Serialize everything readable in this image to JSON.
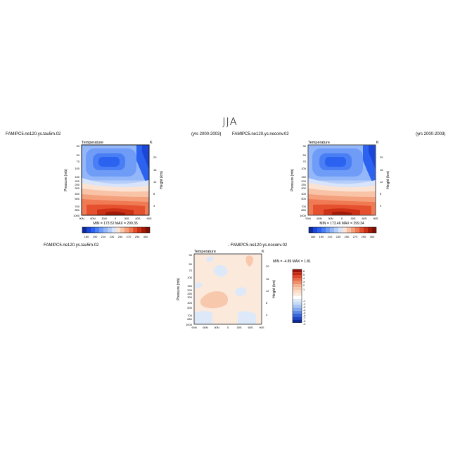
{
  "figure": {
    "title": "JJA"
  },
  "panels": [
    {
      "id": "top-left",
      "case_label": "FAMIPC5.ne120.ys.tau5m.02",
      "years": "(yrs 2000-2003)",
      "variable": "Temperature",
      "units": "K",
      "stats": "MIN = 173.52   MAX = 299.35"
    },
    {
      "id": "top-right",
      "case_label": "FAMIPC5.ne120.ys.noconv.02",
      "years": "(yrs 2000-2003)",
      "variable": "Temperature",
      "units": "K",
      "stats": "MIN = 173.46   MAX = 299.34"
    },
    {
      "id": "bottom-diff",
      "case_label_left": "FAMIPC5.ne120.ys.tau5m.02",
      "case_label_right": "- FAMIPC5.ne120.ys.noconv.02",
      "variable": "Temperature",
      "units": "K",
      "stats": "MIN =  -4.89   MAX =   1.81"
    }
  ],
  "chart_data": [
    {
      "type": "heatmap",
      "title": "Temperature",
      "xlabel": "",
      "ylabel": "Pressure (mb)",
      "ylabel_right": "Height (km)",
      "x_ticks": [
        "90N",
        "60N",
        "30N",
        "0",
        "30S",
        "60S",
        "90S"
      ],
      "y_ticks_pressure": [
        "30",
        "50",
        "70",
        "100",
        "150",
        "200",
        "250",
        "300",
        "400",
        "500",
        "700",
        "850",
        "900",
        "1000"
      ],
      "y_ticks_height": [
        "20",
        "16",
        "12",
        "8",
        "4"
      ],
      "colorbar_labels": [
        "180",
        "190",
        "210",
        "230",
        "250",
        "270",
        "290",
        "300"
      ],
      "colors": [
        "#0c2a9b",
        "#1c46d8",
        "#2b62f0",
        "#4a7ef5",
        "#6f9cf7",
        "#93b7f8",
        "#b6cdf9",
        "#d8e4fb",
        "#fbe3d4",
        "#f8c3a6",
        "#f5a07c",
        "#f07a54",
        "#e5512f",
        "#cc3015",
        "#a41a08"
      ],
      "min": 173.52,
      "max": 299.35
    },
    {
      "type": "heatmap",
      "title": "Temperature",
      "xlabel": "",
      "ylabel": "Pressure (mb)",
      "ylabel_right": "Height (km)",
      "x_ticks": [
        "90N",
        "60N",
        "30N",
        "0",
        "30S",
        "60S",
        "90S"
      ],
      "y_ticks_pressure": [
        "30",
        "50",
        "70",
        "100",
        "150",
        "200",
        "250",
        "300",
        "400",
        "500",
        "700",
        "850",
        "900",
        "1000"
      ],
      "y_ticks_height": [
        "20",
        "16",
        "12",
        "8",
        "4"
      ],
      "colorbar_labels": [
        "180",
        "190",
        "210",
        "230",
        "250",
        "270",
        "290",
        "300"
      ],
      "min": 173.46,
      "max": 299.34
    },
    {
      "type": "heatmap",
      "title": "Temperature",
      "xlabel": "",
      "ylabel": "Pressure (mb)",
      "ylabel_right": "Height (km)",
      "x_ticks": [
        "90N",
        "60N",
        "30N",
        "0",
        "30S",
        "60S",
        "90S"
      ],
      "y_ticks_pressure": [
        "30",
        "50",
        "70",
        "100",
        "150",
        "200",
        "250",
        "300",
        "400",
        "500",
        "700",
        "850",
        "900",
        "1000"
      ],
      "y_ticks_height": [
        "20",
        "16",
        "12",
        "8",
        "4"
      ],
      "colorbar_labels": [
        "5",
        "4",
        "3",
        "2",
        "1",
        "-1",
        "-2",
        "-3",
        "-4",
        "-5",
        "-6",
        "-7",
        "-8"
      ],
      "colorbar_labels_extra_top": "6",
      "colorbar_labels_extra_bottom": "-9",
      "colors": [
        "#9a1208",
        "#c8280f",
        "#e0482a",
        "#ec6c49",
        "#f28f6c",
        "#f6b192",
        "#f8c8ad",
        "#fbdcc8",
        "#fbe9dc",
        "#ffffff",
        "#dde9f9",
        "#c6dbf6",
        "#a7c4f3",
        "#85a9ee",
        "#5f8ae6",
        "#3a67d9",
        "#1e46c6",
        "#0c2a9b"
      ],
      "min": -4.89,
      "max": 1.81
    }
  ]
}
